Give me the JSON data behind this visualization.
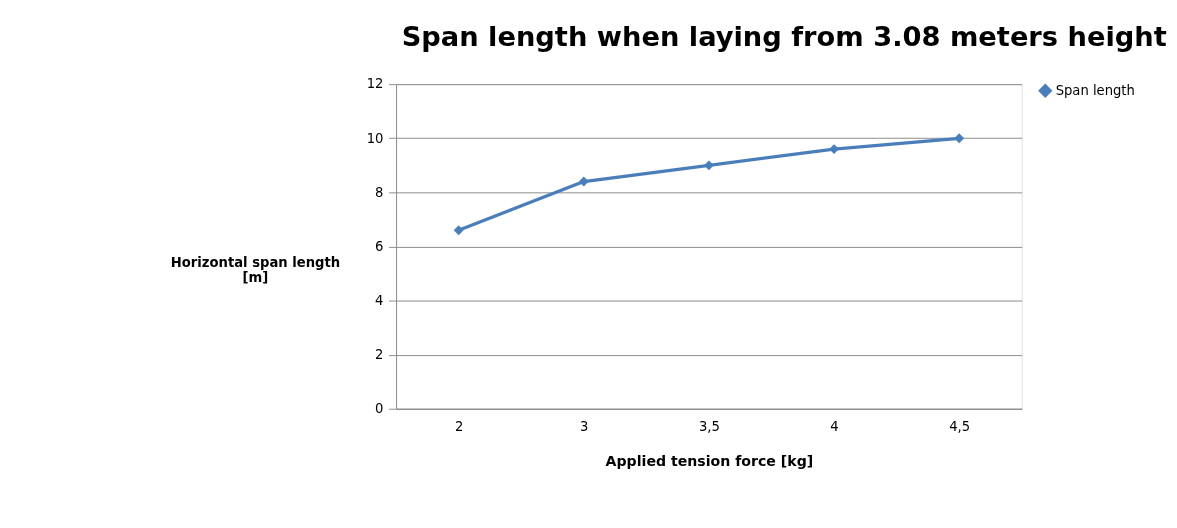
{
  "chart_data": {
    "type": "line",
    "title": "Span length when laying from 3.08 meters height",
    "xlabel": "Applied tension force [kg]",
    "ylabel": "Horizontal span length\n[m]",
    "categories": [
      "2",
      "3",
      "3,5",
      "4",
      "4,5"
    ],
    "series": [
      {
        "name": "Span length",
        "color": "#4a7ebb",
        "values": [
          6.6,
          8.4,
          9.0,
          9.6,
          10.0
        ]
      }
    ],
    "ylim": [
      0,
      12
    ],
    "yticks": [
      0,
      2,
      4,
      6,
      8,
      10,
      12
    ],
    "grid": "y",
    "legend": "right",
    "marker": "diamond",
    "line_style": "solid"
  }
}
